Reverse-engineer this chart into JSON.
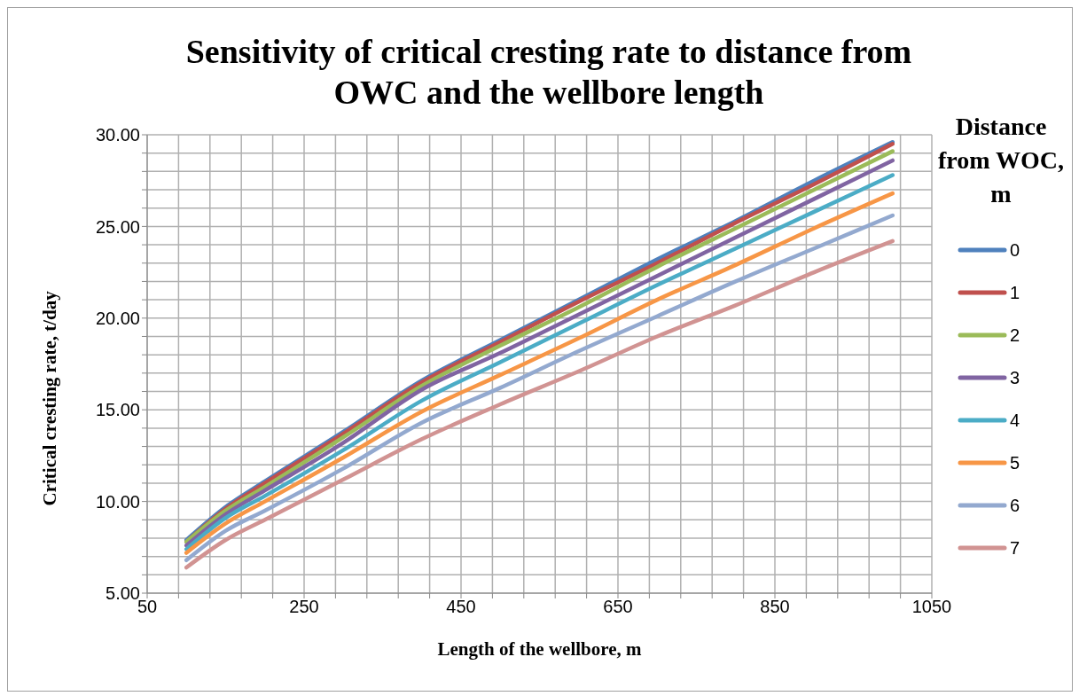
{
  "chart_data": {
    "type": "line",
    "title": "Sensitivity of critical cresting rate to distance from OWC and the wellbore length",
    "xlabel": "Length of the wellbore, m",
    "ylabel": "Critical cresting rate, t/day",
    "legend_title": "Distance from WOC, m",
    "legend": "right",
    "grid": true,
    "x": [
      100,
      150,
      200,
      300,
      400,
      500,
      600,
      700,
      800,
      900,
      1000
    ],
    "xlim": [
      50,
      1050
    ],
    "xticks": [
      50,
      {
        "value": 90,
        "label": null
      },
      {
        "value": 130,
        "label": null
      },
      {
        "value": 170,
        "label": null
      },
      {
        "value": 210,
        "label": null
      },
      250,
      {
        "value": 290,
        "label": null
      },
      {
        "value": 330,
        "label": null
      },
      {
        "value": 370,
        "label": null
      },
      {
        "value": 410,
        "label": null
      },
      450,
      {
        "value": 490,
        "label": null
      },
      {
        "value": 530,
        "label": null
      },
      {
        "value": 570,
        "label": null
      },
      {
        "value": 610,
        "label": null
      },
      650,
      {
        "value": 690,
        "label": null
      },
      {
        "value": 730,
        "label": null
      },
      {
        "value": 770,
        "label": null
      },
      {
        "value": 810,
        "label": null
      },
      850,
      {
        "value": 890,
        "label": null
      },
      {
        "value": 930,
        "label": null
      },
      {
        "value": 970,
        "label": null
      },
      {
        "value": 1010,
        "label": null
      },
      1050
    ],
    "ylim": [
      5,
      30
    ],
    "yticks": [
      {
        "value": 5,
        "label": "5.00"
      },
      {
        "value": 6,
        "label": null
      },
      {
        "value": 7,
        "label": null
      },
      {
        "value": 8,
        "label": null
      },
      {
        "value": 9,
        "label": null
      },
      {
        "value": 10,
        "label": "10.00"
      },
      {
        "value": 11,
        "label": null
      },
      {
        "value": 12,
        "label": null
      },
      {
        "value": 13,
        "label": null
      },
      {
        "value": 14,
        "label": null
      },
      {
        "value": 15,
        "label": "15.00"
      },
      {
        "value": 16,
        "label": null
      },
      {
        "value": 17,
        "label": null
      },
      {
        "value": 18,
        "label": null
      },
      {
        "value": 19,
        "label": null
      },
      {
        "value": 20,
        "label": "20.00"
      },
      {
        "value": 21,
        "label": null
      },
      {
        "value": 22,
        "label": null
      },
      {
        "value": 23,
        "label": null
      },
      {
        "value": 24,
        "label": null
      },
      {
        "value": 25,
        "label": "25.00"
      },
      {
        "value": 26,
        "label": null
      },
      {
        "value": 27,
        "label": null
      },
      {
        "value": 28,
        "label": null
      },
      {
        "value": 29,
        "label": null
      },
      {
        "value": 30,
        "label": "30.00"
      }
    ],
    "series": [
      {
        "name": "0",
        "color": "#4f81bd",
        "values": [
          7.9,
          9.7,
          11.1,
          13.8,
          16.6,
          18.8,
          21.0,
          23.2,
          25.3,
          27.5,
          29.6
        ]
      },
      {
        "name": "1",
        "color": "#c0504d",
        "values": [
          7.8,
          9.6,
          11.0,
          13.7,
          16.5,
          18.7,
          20.9,
          23.0,
          25.2,
          27.3,
          29.5
        ]
      },
      {
        "name": "2",
        "color": "#9bbb59",
        "values": [
          7.8,
          9.5,
          10.8,
          13.5,
          16.3,
          18.5,
          20.6,
          22.8,
          24.9,
          27.0,
          29.1
        ]
      },
      {
        "name": "3",
        "color": "#8064a2",
        "values": [
          7.6,
          9.3,
          10.6,
          13.2,
          16.1,
          18.1,
          20.2,
          22.3,
          24.4,
          26.5,
          28.6
        ]
      },
      {
        "name": "4",
        "color": "#4bacc6",
        "values": [
          7.4,
          9.1,
          10.3,
          12.8,
          15.5,
          17.6,
          19.7,
          21.8,
          23.8,
          25.8,
          27.8
        ]
      },
      {
        "name": "5",
        "color": "#f79646",
        "values": [
          7.2,
          8.8,
          10.0,
          12.4,
          14.9,
          16.9,
          18.9,
          21.0,
          22.9,
          24.9,
          26.8
        ]
      },
      {
        "name": "6",
        "color": "#93a9cf",
        "values": [
          6.8,
          8.4,
          9.5,
          11.8,
          14.3,
          16.2,
          18.2,
          20.1,
          22.0,
          23.8,
          25.6
        ]
      },
      {
        "name": "7",
        "color": "#d19392",
        "values": [
          6.4,
          7.9,
          9.0,
          11.2,
          13.4,
          15.3,
          17.1,
          19.0,
          20.7,
          22.5,
          24.2
        ]
      }
    ]
  }
}
